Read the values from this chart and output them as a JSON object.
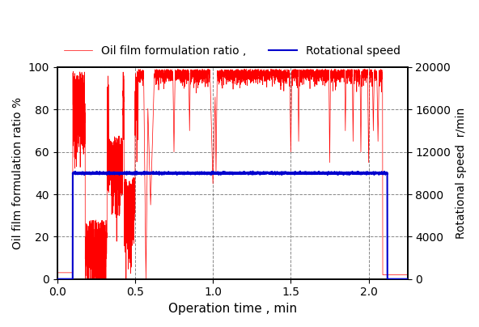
{
  "title": "",
  "xlabel": "Operation time , min",
  "ylabel_left": "Oil film formulation ratio %",
  "ylabel_right": "Rotational speed  r/min",
  "legend_label_red": "Oil film formulation ratio ,",
  "legend_label_blue": "Rotational speed",
  "xlim": [
    0.0,
    2.25
  ],
  "ylim_left": [
    0,
    100
  ],
  "ylim_right": [
    0,
    20000
  ],
  "xticks": [
    0.0,
    0.5,
    1.0,
    1.5,
    2.0
  ],
  "yticks_left": [
    0,
    20,
    40,
    60,
    80,
    100
  ],
  "yticks_right": [
    0,
    4000,
    8000,
    12000,
    16000,
    20000
  ],
  "line_color_red": "#FF0000",
  "line_color_blue": "#0000CD",
  "background_color": "#FFFFFF",
  "grid_color": "#555555",
  "grid_style": "--",
  "grid_alpha": 0.7,
  "blue_speed_rpm": 10000,
  "blue_start_time": 0.1,
  "blue_end_time": 2.12,
  "figsize": [
    5.92,
    4.04
  ],
  "dpi": 100
}
